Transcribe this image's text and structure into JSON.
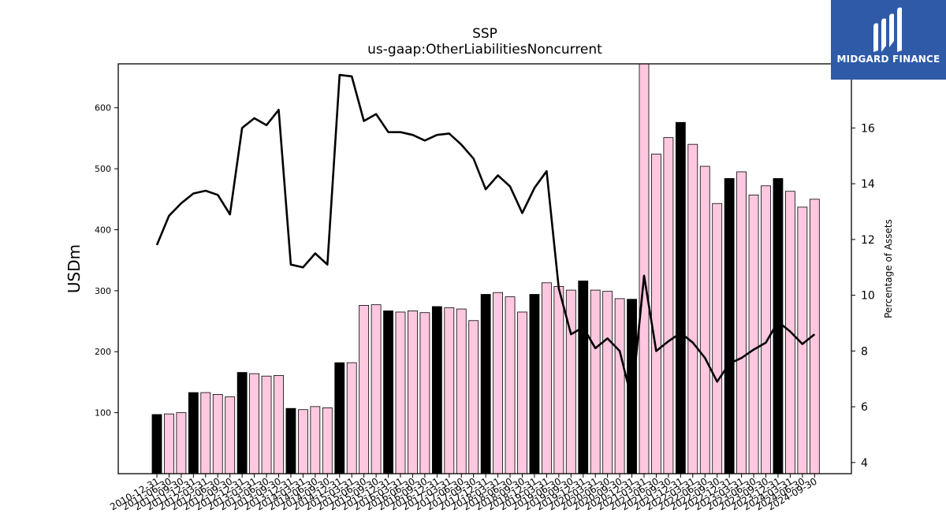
{
  "chart_data": {
    "type": "bar",
    "title": "SSP",
    "subtitle": "us-gaap:OtherLiabilitiesNoncurrent",
    "ylabel": "USDm",
    "y2label": "Percentage of Assets",
    "ylim": [
      0,
      672
    ],
    "y2lim": [
      3.6,
      18.3
    ],
    "yticks": [
      100,
      200,
      300,
      400,
      500,
      600
    ],
    "y2ticks": [
      4,
      6,
      8,
      10,
      12,
      14,
      16
    ],
    "grid": false,
    "categories": [
      "2010-12-31",
      "2011-06-30",
      "2011-09-30",
      "2011-12-31",
      "2012-03-31",
      "2012-06-30",
      "2012-09-30",
      "2012-12-31",
      "2013-03-31",
      "2013-06-30",
      "2013-09-30",
      "2013-12-31",
      "2014-03-31",
      "2014-06-30",
      "2014-09-30",
      "2014-12-31",
      "2015-03-31",
      "2015-06-30",
      "2015-09-30",
      "2015-12-31",
      "2016-03-31",
      "2016-06-30",
      "2016-09-30",
      "2016-12-31",
      "2017-03-31",
      "2017-06-30",
      "2017-09-30",
      "2017-12-31",
      "2018-03-31",
      "2018-06-30",
      "2018-09-30",
      "2018-12-31",
      "2019-03-31",
      "2019-06-30",
      "2019-09-30",
      "2019-12-31",
      "2020-03-31",
      "2020-06-30",
      "2020-09-30",
      "2020-12-31",
      "2021-03-31",
      "2021-06-30",
      "2021-09-30",
      "2021-12-31",
      "2022-03-31",
      "2022-06-30",
      "2022-09-30",
      "2022-12-31",
      "2023-03-31",
      "2023-06-30",
      "2023-09-30",
      "2023-12-31",
      "2024-03-31",
      "2024-06-30",
      "2024-09-30"
    ],
    "series": [
      {
        "kind": "bar",
        "values": [
          97,
          98,
          100,
          133,
          133,
          130,
          126,
          166,
          164,
          160,
          161,
          107,
          105,
          110,
          108,
          182,
          182,
          276,
          277,
          267,
          265,
          267,
          264,
          274,
          272,
          270,
          251,
          294,
          297,
          290,
          265,
          294,
          313,
          307,
          301,
          316,
          301,
          299,
          287,
          286,
          672,
          524,
          551,
          576,
          540,
          504,
          443,
          484,
          495,
          457,
          472,
          484,
          463,
          437,
          450
        ],
        "colors": [
          "#000000",
          "#ffc8e0",
          "#ffc8e0",
          "#000000",
          "#ffc8e0",
          "#ffc8e0",
          "#ffc8e0",
          "#000000",
          "#ffc8e0",
          "#ffc8e0",
          "#ffc8e0",
          "#000000",
          "#ffc8e0",
          "#ffc8e0",
          "#ffc8e0",
          "#000000",
          "#ffc8e0",
          "#ffc8e0",
          "#ffc8e0",
          "#000000",
          "#ffc8e0",
          "#ffc8e0",
          "#ffc8e0",
          "#000000",
          "#ffc8e0",
          "#ffc8e0",
          "#ffc8e0",
          "#000000",
          "#ffc8e0",
          "#ffc8e0",
          "#ffc8e0",
          "#000000",
          "#ffc8e0",
          "#ffc8e0",
          "#ffc8e0",
          "#000000",
          "#ffc8e0",
          "#ffc8e0",
          "#ffc8e0",
          "#000000",
          "#ffc8e0",
          "#ffc8e0",
          "#ffc8e0",
          "#000000",
          "#ffc8e0",
          "#ffc8e0",
          "#ffc8e0",
          "#000000",
          "#ffc8e0",
          "#ffc8e0",
          "#ffc8e0",
          "#000000",
          "#ffc8e0",
          "#ffc8e0",
          "#ffc8e0"
        ]
      },
      {
        "kind": "line",
        "axis": "right",
        "color": "#000000",
        "values": [
          11.8,
          12.85,
          13.3,
          13.65,
          13.75,
          13.6,
          12.9,
          16.0,
          16.35,
          16.1,
          16.65,
          11.1,
          11.0,
          11.5,
          11.1,
          17.9,
          17.85,
          16.25,
          16.5,
          15.85,
          15.85,
          15.75,
          15.55,
          15.75,
          15.8,
          15.4,
          14.9,
          13.8,
          14.3,
          13.9,
          12.95,
          13.85,
          14.45,
          10.25,
          8.6,
          8.85,
          8.1,
          8.45,
          8.0,
          6.25,
          10.7,
          8.0,
          8.35,
          8.65,
          8.3,
          7.75,
          6.9,
          7.55,
          7.75,
          8.05,
          8.3,
          9.05,
          8.7,
          8.25,
          8.6
        ]
      }
    ]
  },
  "logo": {
    "brand_text": "MIDGARD FINANCE",
    "background_color": "#2f5aa8",
    "icon": "midgard-logo-icon"
  }
}
